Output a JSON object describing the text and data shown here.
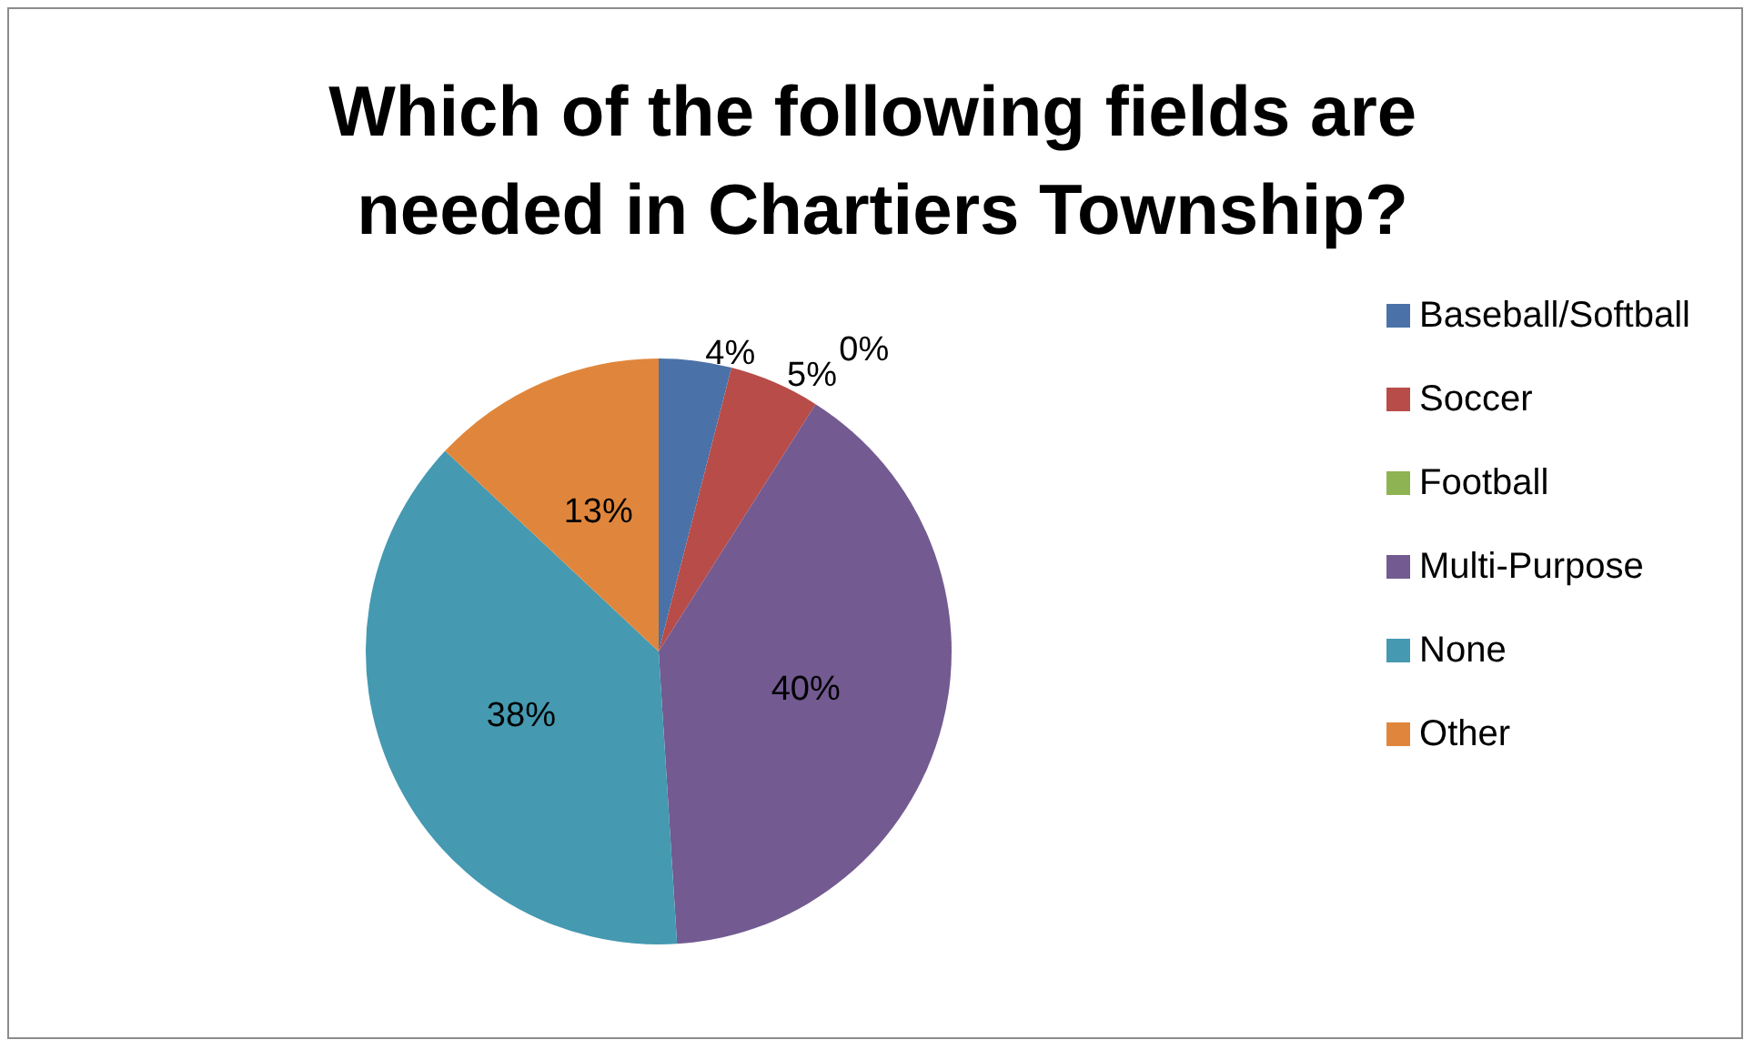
{
  "chart_data": {
    "type": "pie",
    "title": "Which of the following fields are needed in Chartiers Township?",
    "categories": [
      "Baseball/Softball",
      "Soccer",
      "Football",
      "Multi-Purpose",
      "None",
      "Other"
    ],
    "values": [
      4,
      5,
      0,
      40,
      38,
      13
    ],
    "colors": [
      "#4a72a8",
      "#b84c48",
      "#8db352",
      "#735a91",
      "#4599b0",
      "#e0863c"
    ],
    "value_labels": [
      "4%",
      "5%",
      "0%",
      "40%",
      "38%",
      "13%"
    ],
    "legend": "right"
  }
}
